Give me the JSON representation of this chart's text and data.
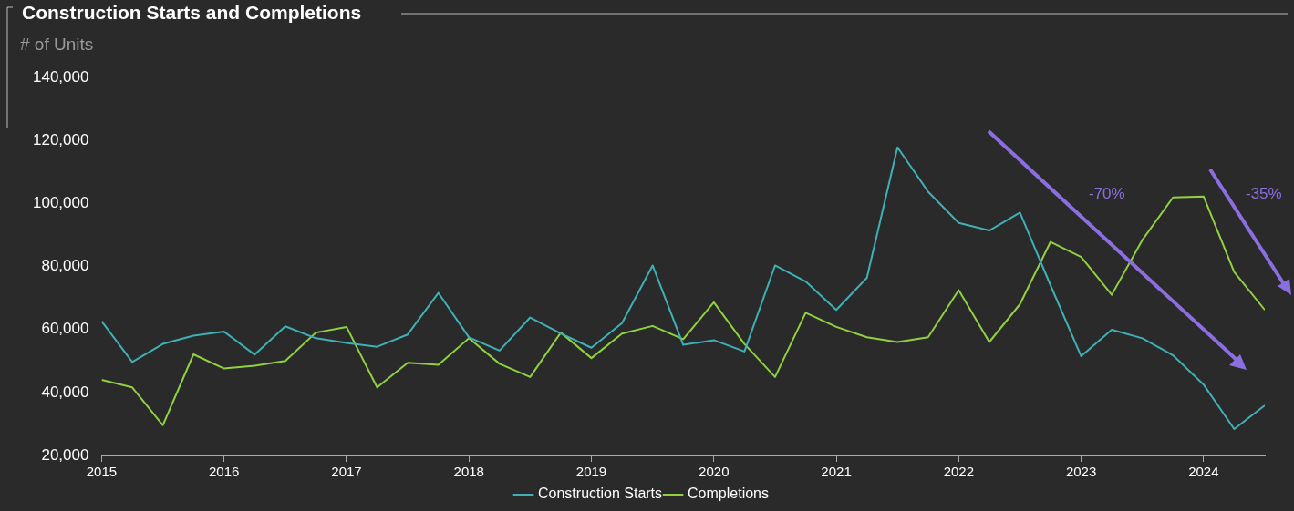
{
  "chart_data": {
    "type": "line",
    "title": "Construction Starts and Completions",
    "ylabel": "# of Units",
    "x": [
      2015,
      2015.25,
      2015.5,
      2015.75,
      2016,
      2016.25,
      2016.5,
      2016.75,
      2017,
      2017.25,
      2017.5,
      2017.75,
      2018,
      2018.25,
      2018.5,
      2018.75,
      2019,
      2019.25,
      2019.5,
      2019.75,
      2020,
      2020.25,
      2020.5,
      2020.75,
      2021,
      2021.25,
      2021.5,
      2021.75,
      2022,
      2022.25,
      2022.5,
      2022.75,
      2023,
      2023.25,
      2023.5,
      2023.75,
      2024,
      2024.25,
      2024.5
    ],
    "series": [
      {
        "name": "Construction Starts",
        "color": "#3fb0b5",
        "values": [
          62600,
          49700,
          55400,
          58000,
          59300,
          52000,
          61000,
          57200,
          55700,
          54500,
          58400,
          71600,
          57500,
          53300,
          63800,
          58700,
          54200,
          62000,
          80300,
          55100,
          56600,
          53000,
          80300,
          75200,
          66200,
          76400,
          117800,
          103700,
          93800,
          91400,
          97100,
          74000,
          51500,
          59900,
          57200,
          51800,
          42500,
          28400,
          35900
        ]
      },
      {
        "name": "Completions",
        "color": "#8fd13f",
        "values": [
          44000,
          41600,
          29600,
          52100,
          47600,
          48500,
          50000,
          59000,
          60800,
          41600,
          49400,
          48800,
          57200,
          49100,
          44900,
          59000,
          50900,
          58700,
          61100,
          56900,
          68600,
          55400,
          44900,
          65300,
          60800,
          57500,
          56000,
          57500,
          72500,
          56000,
          68000,
          87800,
          83000,
          71000,
          88400,
          101900,
          102200,
          78200,
          66200
        ]
      }
    ],
    "xlim": [
      2015,
      2024.5
    ],
    "xticks": [
      2015,
      2016,
      2017,
      2018,
      2019,
      2020,
      2021,
      2022,
      2023,
      2024
    ],
    "ylim": [
      20000,
      140000
    ],
    "yticks": [
      {
        "value": 20000,
        "label": "20,000"
      },
      {
        "value": 40000,
        "label": "40,000"
      },
      {
        "value": 60000,
        "label": "60,000"
      },
      {
        "value": 80000,
        "label": "80,000"
      },
      {
        "value": 100000,
        "label": "100,000"
      },
      {
        "value": 120000,
        "label": "120,000"
      },
      {
        "value": 140000,
        "label": "140,000"
      }
    ],
    "annotations": [
      "-70%",
      "-35%"
    ],
    "grid": false,
    "legend": "bottom",
    "marker": "none",
    "line_style": "solid"
  }
}
